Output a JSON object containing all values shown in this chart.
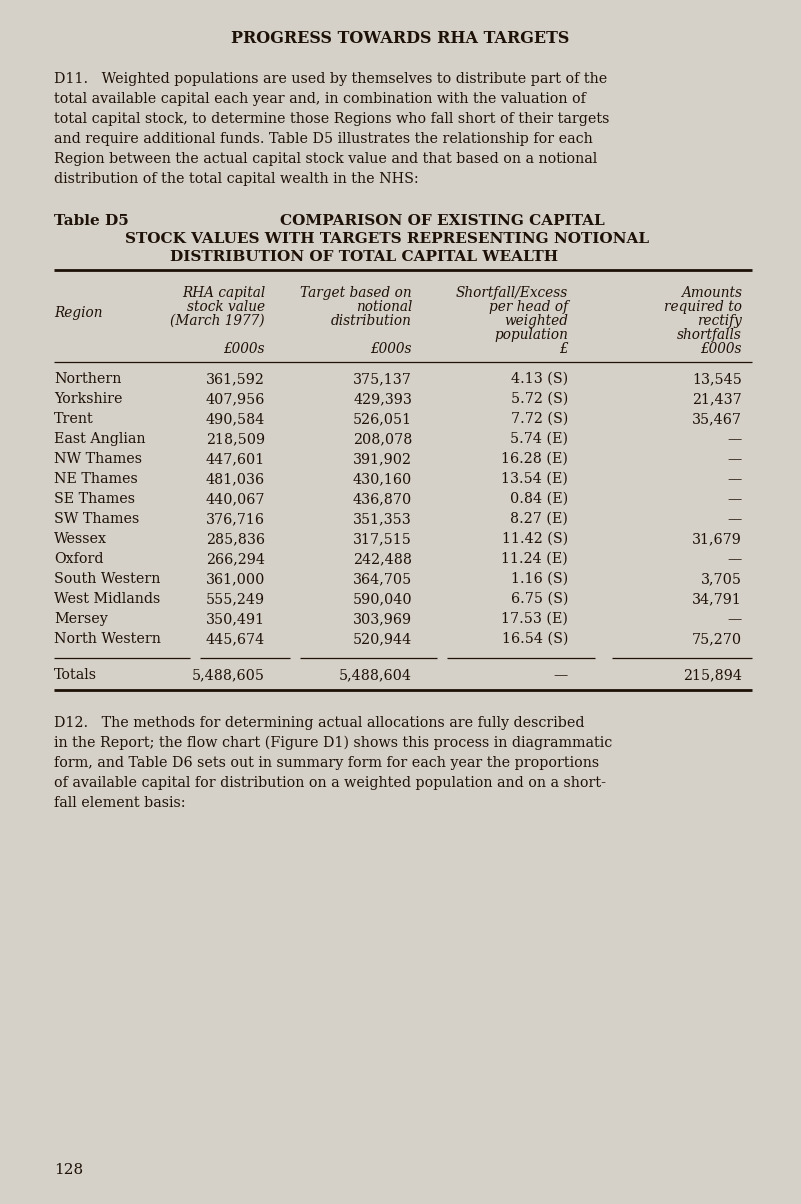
{
  "bg_color": "#d5d0c8",
  "text_color": "#1e1208",
  "page_title": "PROGRESS TOWARDS RHA TARGETS",
  "page_number": "128",
  "d11_lines": [
    "D11.   Weighted populations are used by themselves to distribute part of the",
    "total available capital each year and, in combination with the valuation of",
    "total capital stock, to determine those Regions who fall short of their targets",
    "and require additional funds. Table D5 illustrates the relationship for each",
    "Region between the actual capital stock value and that based on a notional",
    "distribution of the total capital wealth in the NHS:"
  ],
  "table_label": "Table D5",
  "table_title_line1": "COMPARISON OF EXISTING CAPITAL",
  "table_title_line2": "STOCK VALUES WITH TARGETS REPRESENTING NOTIONAL",
  "table_title_line3": "DISTRIBUTION OF TOTAL CAPITAL WEALTH",
  "hdr_col1": [
    "RHA capital",
    "stock value",
    "(March 1977)",
    "",
    "£000s"
  ],
  "hdr_col2": [
    "Target based on",
    "notional",
    "distribution",
    "",
    "£000s"
  ],
  "hdr_col3": [
    "Shortfall/Excess",
    "per head of",
    "weighted",
    "population",
    "£"
  ],
  "hdr_col4": [
    "Amounts",
    "required to",
    "rectify",
    "shortfalls",
    "£000s"
  ],
  "rows": [
    [
      "Northern",
      "361,592",
      "375,137",
      "4.13 (S)",
      "13,545"
    ],
    [
      "Yorkshire",
      "407,956",
      "429,393",
      "5.72 (S)",
      "21,437"
    ],
    [
      "Trent",
      "490,584",
      "526,051",
      "7.72 (S)",
      "35,467"
    ],
    [
      "East Anglian",
      "218,509",
      "208,078",
      "5.74 (E)",
      "—"
    ],
    [
      "NW Thames",
      "447,601",
      "391,902",
      "16.28 (E)",
      "—"
    ],
    [
      "NE Thames",
      "481,036",
      "430,160",
      "13.54 (E)",
      "—"
    ],
    [
      "SE Thames",
      "440,067",
      "436,870",
      "0.84 (E)",
      "—"
    ],
    [
      "SW Thames",
      "376,716",
      "351,353",
      "8.27 (E)",
      "—"
    ],
    [
      "Wessex",
      "285,836",
      "317,515",
      "11.42 (S)",
      "31,679"
    ],
    [
      "Oxford",
      "266,294",
      "242,488",
      "11.24 (E)",
      "—"
    ],
    [
      "South Western",
      "361,000",
      "364,705",
      "1.16 (S)",
      "3,705"
    ],
    [
      "West Midlands",
      "555,249",
      "590,040",
      "6.75 (S)",
      "34,791"
    ],
    [
      "Mersey",
      "350,491",
      "303,969",
      "17.53 (E)",
      "—"
    ],
    [
      "North Western",
      "445,674",
      "520,944",
      "16.54 (S)",
      "75,270"
    ]
  ],
  "totals_row": [
    "Totals",
    "5,488,605",
    "5,488,604",
    "—",
    "215,894"
  ],
  "d12_lines": [
    "D12.   The methods for determining actual allocations are fully described",
    "in the Report; the flow chart (Figure D1) shows this process in diagrammatic",
    "form, and Table D6 sets out in summary form for each year the proportions",
    "of available capital for distribution on a weighted population and on a short-",
    "fall element basis:"
  ]
}
